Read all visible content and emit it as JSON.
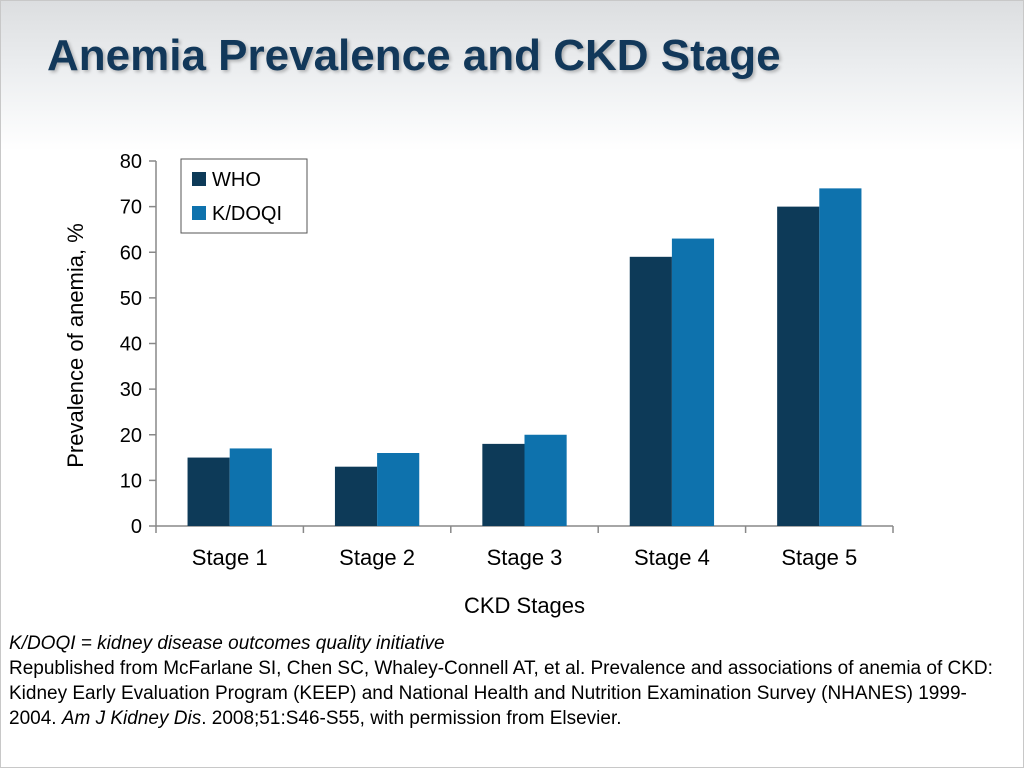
{
  "title": "Anemia Prevalence and CKD Stage",
  "colors": {
    "who": "#0d3a58",
    "kdoqi": "#0e72ad",
    "title": "#12385a"
  },
  "chart_data": {
    "type": "bar",
    "categories": [
      "Stage 1",
      "Stage 2",
      "Stage 3",
      "Stage 4",
      "Stage 5"
    ],
    "series": [
      {
        "name": "WHO",
        "values": [
          15,
          13,
          18,
          59,
          70
        ]
      },
      {
        "name": "K/DOQI",
        "values": [
          17,
          16,
          20,
          63,
          74
        ]
      }
    ],
    "xlabel": "CKD Stages",
    "ylabel": "Prevalence of anemia, %",
    "ylim": [
      0,
      80
    ],
    "yticks": [
      0,
      10,
      20,
      30,
      40,
      50,
      60,
      70,
      80
    ],
    "legend_position": "top-left",
    "grid": false
  },
  "footer": {
    "abbr": "K/DOQI = kidney disease outcomes quality initiative",
    "citation_part1": "Republished from McFarlane SI, Chen SC, Whaley-Connell AT, et al. Prevalence and associations of anemia of CKD: Kidney Early Evaluation Program (KEEP) and National Health and Nutrition Examination Survey (NHANES) 1999-2004. ",
    "journal": "Am J Kidney Dis",
    "citation_part2": ". 2008;51:S46-S55, with permission from Elsevier."
  }
}
